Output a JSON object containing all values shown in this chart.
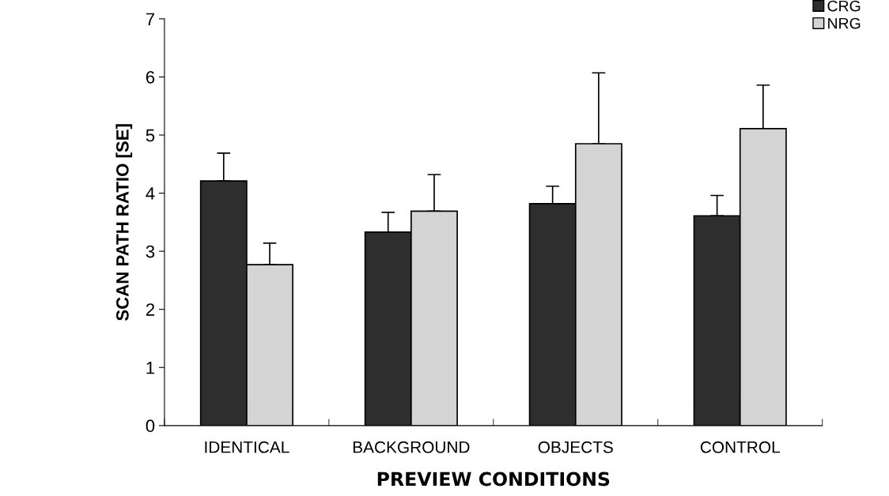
{
  "chart_data": {
    "type": "bar",
    "xlabel": "PREVIEW CONDITIONS",
    "ylabel": "SCAN PATH RATIO [SE]",
    "categories": [
      "IDENTICAL",
      "BACKGROUND",
      "OBJECTS",
      "CONTROL"
    ],
    "series": [
      {
        "name": "CRG",
        "color": "#2e2e2e",
        "values": [
          4.21,
          3.33,
          3.82,
          3.61
        ],
        "errors": [
          [
            4.21,
            4.69
          ],
          [
            3.33,
            3.67
          ],
          [
            3.82,
            4.12
          ],
          [
            3.61,
            3.96
          ]
        ]
      },
      {
        "name": "NRG",
        "color": "#d4d4d4",
        "values": [
          2.77,
          3.69,
          4.85,
          5.11
        ],
        "errors": [
          [
            2.77,
            3.14
          ],
          [
            3.69,
            4.32
          ],
          [
            4.85,
            6.07
          ],
          [
            5.11,
            5.86
          ]
        ]
      }
    ],
    "ylim": [
      0,
      7
    ],
    "yticks": [
      0,
      1,
      2,
      3,
      4,
      5,
      6,
      7
    ],
    "grid": false,
    "legend": "top right"
  }
}
